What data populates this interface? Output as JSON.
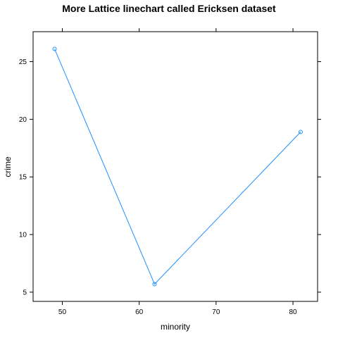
{
  "chart_data": {
    "type": "line",
    "title": "More Lattice linechart called Ericksen dataset",
    "xlabel": "minority",
    "ylabel": "crime",
    "x": [
      49,
      62,
      81
    ],
    "y": [
      26.1,
      5.7,
      18.9
    ],
    "xlim": [
      46.2,
      83.2
    ],
    "ylim": [
      4.2,
      27.6
    ],
    "xticks": [
      50,
      60,
      70,
      80
    ],
    "yticks": [
      5,
      10,
      15,
      20,
      25
    ],
    "line_color": "#1e90ff",
    "markers": "open-circle",
    "grid": false
  }
}
